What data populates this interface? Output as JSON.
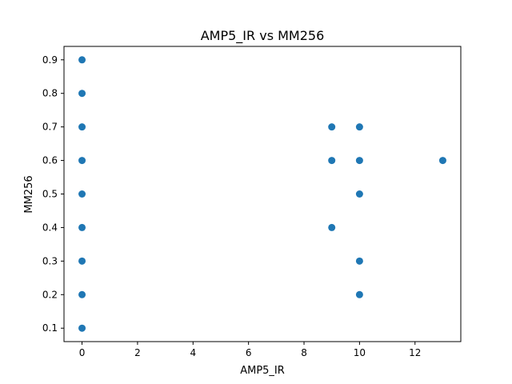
{
  "chart_data": {
    "type": "scatter",
    "title": "AMP5_IR vs MM256",
    "xlabel": "AMP5_IR",
    "ylabel": "MM256",
    "xlim": [
      -0.65,
      13.65
    ],
    "ylim": [
      0.06,
      0.94
    ],
    "xticks": [
      0,
      2,
      4,
      6,
      8,
      10,
      12
    ],
    "yticks": [
      0.1,
      0.2,
      0.3,
      0.4,
      0.5,
      0.6,
      0.7,
      0.8,
      0.9
    ],
    "grid": false,
    "marker_color": "#1f77b4",
    "points": [
      {
        "x": 0,
        "y": 0.1
      },
      {
        "x": 0,
        "y": 0.2
      },
      {
        "x": 0,
        "y": 0.3
      },
      {
        "x": 0,
        "y": 0.4
      },
      {
        "x": 0,
        "y": 0.5
      },
      {
        "x": 0,
        "y": 0.6
      },
      {
        "x": 0,
        "y": 0.7
      },
      {
        "x": 0,
        "y": 0.8
      },
      {
        "x": 0,
        "y": 0.9
      },
      {
        "x": 9,
        "y": 0.7
      },
      {
        "x": 9,
        "y": 0.6
      },
      {
        "x": 9,
        "y": 0.4
      },
      {
        "x": 10,
        "y": 0.7
      },
      {
        "x": 10,
        "y": 0.6
      },
      {
        "x": 10,
        "y": 0.5
      },
      {
        "x": 10,
        "y": 0.3
      },
      {
        "x": 10,
        "y": 0.2
      },
      {
        "x": 13,
        "y": 0.6
      }
    ]
  }
}
